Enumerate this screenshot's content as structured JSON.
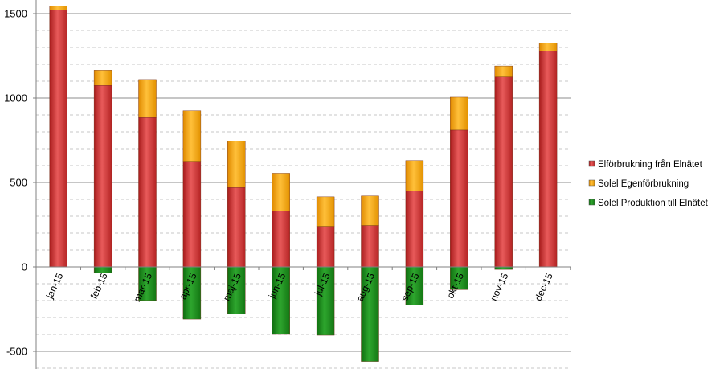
{
  "chart_data": {
    "type": "bar",
    "stacked": true,
    "categories": [
      "jan-15",
      "feb-15",
      "mar-15",
      "apr-15",
      "maj-15",
      "jun-15",
      "jul-15",
      "aug-15",
      "sep-15",
      "okt-15",
      "nov-15",
      "dec-15"
    ],
    "series": [
      {
        "name": "Elförbrukning från Elnätet",
        "color": "#cc3333",
        "values": [
          1520,
          1075,
          885,
          625,
          470,
          330,
          240,
          245,
          450,
          810,
          1125,
          1280
        ]
      },
      {
        "name": "Solel Egenförbrukning",
        "color": "#f2a500",
        "values": [
          25,
          90,
          225,
          300,
          275,
          225,
          175,
          175,
          180,
          195,
          65,
          45
        ]
      },
      {
        "name": "Solel Produktion till Elnätet",
        "color": "#1a8a1a",
        "values": [
          0,
          -35,
          -200,
          -310,
          -280,
          -400,
          -405,
          -560,
          -225,
          -135,
          -15,
          0
        ]
      }
    ],
    "ylim": [
      -600,
      1500
    ],
    "yticks": [
      -500,
      0,
      500,
      1000,
      1500
    ],
    "ytick_labels": [
      "-500",
      "0",
      "500",
      "1000",
      "1500"
    ],
    "major_step": 500,
    "minor_step": 100,
    "legend": "right",
    "grid": true
  }
}
